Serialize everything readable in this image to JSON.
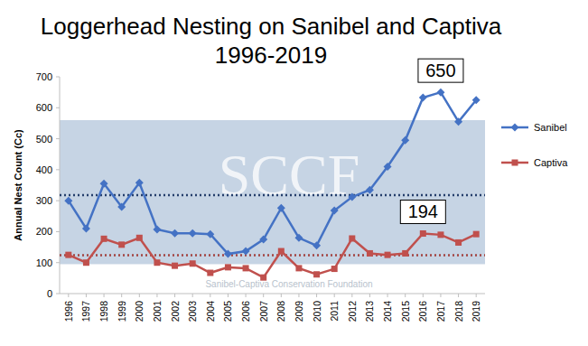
{
  "chart_data": {
    "type": "line",
    "title": "Loggerhead Nesting on Sanibel and Captiva",
    "subtitle": "1996-2019",
    "y_label": "Annual Nest Count (Cc)",
    "categories": [
      "1996",
      "1997",
      "1998",
      "1999",
      "2000",
      "2001",
      "2002",
      "2003",
      "2004",
      "2005",
      "2006",
      "2007",
      "2008",
      "2009",
      "2010",
      "2011",
      "2012",
      "2013",
      "2014",
      "2015",
      "2016",
      "2017",
      "2018",
      "2019"
    ],
    "series": [
      {
        "name": "Sanibel",
        "color": "#4472c4",
        "marker": "diamond",
        "line_style": "solid",
        "values": [
          300,
          210,
          355,
          280,
          358,
          207,
          195,
          195,
          192,
          128,
          137,
          175,
          276,
          180,
          155,
          268,
          312,
          335,
          410,
          495,
          633,
          650,
          555,
          625
        ],
        "average": 318
      },
      {
        "name": "Captiva",
        "color": "#c0504d",
        "marker": "square",
        "line_style": "solid",
        "values": [
          125,
          100,
          177,
          158,
          180,
          100,
          90,
          97,
          67,
          85,
          82,
          52,
          137,
          82,
          62,
          80,
          178,
          130,
          125,
          130,
          194,
          190,
          165,
          192
        ],
        "average": 124
      }
    ],
    "annotations": [
      {
        "label": "650",
        "x": "2017",
        "y": 650
      },
      {
        "label": "194",
        "x": "2016",
        "y": 194
      }
    ],
    "watermark": {
      "text": "SCCF",
      "caption": "Sanibel-Captiva Conservation Foundation",
      "band": [
        95,
        560
      ]
    },
    "ylim": [
      0,
      700
    ],
    "yticks": [
      0,
      100,
      200,
      300,
      400,
      500,
      600,
      700
    ],
    "grid": false,
    "legend": "right"
  }
}
